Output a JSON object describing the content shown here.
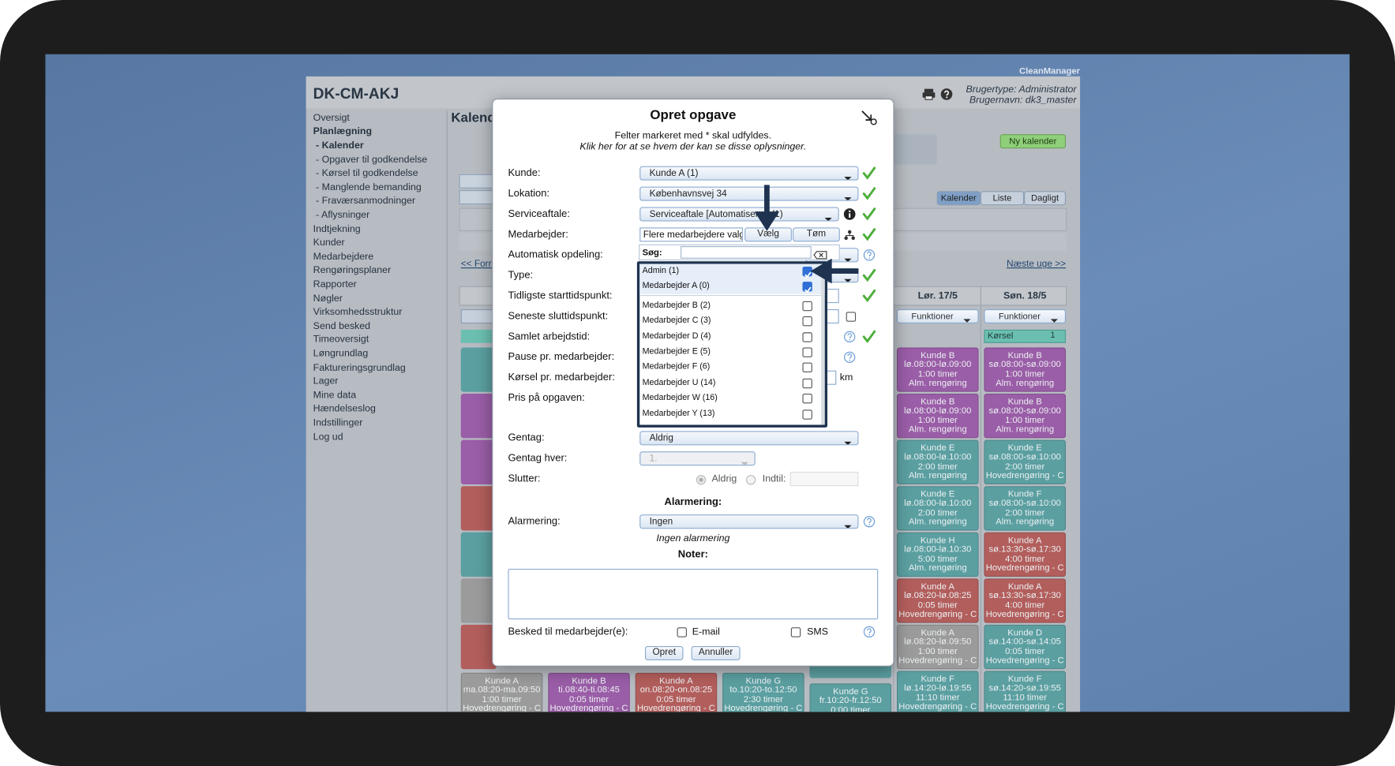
{
  "app_name": "CleanManager",
  "header": {
    "title": "DK-CM-AKJ",
    "user_type": "Brugertype: Administrator",
    "user_name": "Brugernavn: dk3_master"
  },
  "sidebar": [
    {
      "label": "Oversigt"
    },
    {
      "label": "Planlægning",
      "bold": true
    },
    {
      "label": "- Kalender",
      "bold": true
    },
    {
      "label": "- Opgaver til godkendelse"
    },
    {
      "label": "- Kørsel til godkendelse"
    },
    {
      "label": "- Manglende bemanding"
    },
    {
      "label": "- Fraværsanmodninger"
    },
    {
      "label": "- Aflysninger"
    },
    {
      "label": "Indtjekning"
    },
    {
      "label": "Kunder"
    },
    {
      "label": "Medarbejdere"
    },
    {
      "label": "Rengøringsplaner"
    },
    {
      "label": "Rapporter"
    },
    {
      "label": "Nøgler"
    },
    {
      "label": "Virksomhedsstruktur"
    },
    {
      "label": "Send besked"
    },
    {
      "label": "Timeoversigt"
    },
    {
      "label": "Løngrundlag"
    },
    {
      "label": "Faktureringsgrundlag"
    },
    {
      "label": "Lager"
    },
    {
      "label": "Mine data"
    },
    {
      "label": "Hændelseslog"
    },
    {
      "label": "Indstillinger"
    },
    {
      "label": "Log ud"
    }
  ],
  "calendar": {
    "heading": "Kalender",
    "new_calendar": "Ny kalender",
    "views": [
      "Kalender",
      "Liste",
      "Dagligt"
    ],
    "active_view": 0,
    "previous_week": "<< Forrige uge",
    "next_week": "Næste uge >>",
    "days": [
      {
        "header": "Lør. 17/5",
        "functions": "Funktioner",
        "cards": [
          {
            "color": "#9a5da7",
            "lines": [
              "Kunde B",
              "lø.08:00-lø.09:00",
              "1:00 timer",
              "Alm. rengøring"
            ]
          },
          {
            "color": "#9a5da7",
            "lines": [
              "Kunde B",
              "lø.08:00-lø.09:00",
              "1:00 timer",
              "Alm. rengøring"
            ]
          },
          {
            "color": "#5b9fa1",
            "lines": [
              "Kunde E",
              "lø.08:00-lø.10:00",
              "2:00 timer",
              "Alm. rengøring"
            ]
          },
          {
            "color": "#5b9fa1",
            "lines": [
              "Kunde E",
              "lø.08:00-lø.10:00",
              "2:00 timer",
              "Alm. rengøring"
            ]
          },
          {
            "color": "#5b9fa1",
            "lines": [
              "Kunde H",
              "lø.08:00-lø.10:30",
              "5:00 timer",
              "Alm. rengøring"
            ]
          },
          {
            "color": "#b25e5c",
            "lines": [
              "Kunde A",
              "lø.08:20-lø.08:25",
              "0:05 timer",
              "Hovedrengøring - C"
            ]
          },
          {
            "color": "#9b9b9b",
            "lines": [
              "Kunde A",
              "lø.08:20-lø.09:50",
              "1:00 timer",
              "Hovedrengøring - C"
            ]
          },
          {
            "color": "#5b9fa1",
            "lines": [
              "Kunde F",
              "lø.14:20-lø.19:55",
              "11:10 timer",
              "Hovedrengøring - C"
            ]
          }
        ]
      },
      {
        "header": "Søn. 18/5",
        "functions": "Funktioner",
        "transport": "Kørsel",
        "transport_count": "1",
        "cards": [
          {
            "color": "#9a5da7",
            "lines": [
              "Kunde B",
              "sø.08:00-sø.09:00",
              "1:00 timer",
              "Alm. rengøring"
            ]
          },
          {
            "color": "#9a5da7",
            "lines": [
              "Kunde B",
              "sø.08:00-sø.09:00",
              "1:00 timer",
              "Alm. rengøring"
            ]
          },
          {
            "color": "#5b9fa1",
            "lines": [
              "Kunde E",
              "sø.08:00-sø.10:00",
              "2:00 timer",
              "Hovedrengøring - C"
            ]
          },
          {
            "color": "#5b9fa1",
            "lines": [
              "Kunde F",
              "sø.08:00-sø.10:00",
              "2:00 timer",
              "Alm. rengøring"
            ]
          },
          {
            "color": "#b25e5c",
            "lines": [
              "Kunde A",
              "sø.13:30-sø.17:30",
              "4:00 timer",
              "Hovedrengøring - C"
            ]
          },
          {
            "color": "#b25e5c",
            "lines": [
              "Kunde A",
              "sø.13:30-sø.17:30",
              "4:00 timer",
              "Hovedrengøring - C"
            ]
          },
          {
            "color": "#5b9fa1",
            "lines": [
              "Kunde D",
              "sø.14:00-sø.14:05",
              "0:05 timer",
              "Hovedrengøring - C"
            ]
          },
          {
            "color": "#5b9fa1",
            "lines": [
              "Kunde F",
              "sø.14:20-sø.19:55",
              "11:10 timer",
              "Hovedrengøring - C"
            ]
          }
        ]
      }
    ],
    "bottom_row": [
      {
        "color": "#9b9b9b",
        "lines": [
          "Kunde A",
          "ma.08:20-ma.09:50",
          "1:00 timer",
          "Hovedrengøring - C"
        ]
      },
      {
        "color": "#9a5da7",
        "lines": [
          "Kunde B",
          "ti.08:40-ti.08:45",
          "0:05 timer",
          "Hovedrengøring - C"
        ]
      },
      {
        "color": "#b25e5c",
        "lines": [
          "Kunde A",
          "on.08:20-on.08:25",
          "0:05 timer",
          "Hovedrengøring - C"
        ]
      },
      {
        "color": "#5b9fa1",
        "lines": [
          "Kunde G",
          "to.10:20-to.12:50",
          "2:30 timer",
          "Hovedrengøring - C"
        ]
      },
      {
        "color": "#5b9fa1",
        "lines": [
          "Kunde G",
          "fr.10:20-fr.12:50",
          "0:00 timer"
        ]
      }
    ]
  },
  "modal": {
    "title": "Opret opgave",
    "required_note": "Felter markeret med * skal udfyldes.",
    "visibility_note": "Klik her for at se hvem der kan se disse oplysninger.",
    "customer": {
      "label": "Kunde:",
      "value": "Kunde A (1)"
    },
    "location": {
      "label": "Lokation:",
      "value": "Københavnsvej 34"
    },
    "agreement": {
      "label": "Serviceaftale:",
      "value": "Serviceaftale [Automatiseret] (1)"
    },
    "employee": {
      "label": "Medarbejder:",
      "value": "Flere medarbejdere valgt",
      "choose": "Vælg",
      "clear": "Tøm"
    },
    "auto_split": {
      "label": "Automatisk opdeling:"
    },
    "type": {
      "label": "Type:"
    },
    "earliest_start": {
      "label": "Tidligste starttidspunkt:"
    },
    "latest_end": {
      "label": "Seneste sluttidspunkt:"
    },
    "total_time": {
      "label": "Samlet arbejdstid:"
    },
    "break": {
      "label": "Pause pr. medarbejder:"
    },
    "driving": {
      "label": "Kørsel pr. medarbejder:",
      "unit": "km"
    },
    "price": {
      "label": "Pris på opgaven:"
    },
    "repeat": {
      "label": "Gentag:",
      "value": "Aldrig"
    },
    "repeat_every": {
      "label": "Gentag hver:",
      "value": "1."
    },
    "ends": {
      "label": "Slutter:",
      "never": "Aldrig",
      "until": "Indtil:"
    },
    "alarm_heading": "Alarmering:",
    "alarm": {
      "label": "Alarmering:",
      "value": "Ingen",
      "note": "Ingen alarmering"
    },
    "notes_heading": "Noter:",
    "message": {
      "label": "Besked til medarbejder(e):",
      "email": "E-mail",
      "sms": "SMS"
    },
    "submit": "Opret",
    "cancel": "Annuller",
    "picker": {
      "search_label": "Søg:",
      "options": [
        {
          "name": "Admin (1)",
          "checked": true
        },
        {
          "name": "Medarbejder A (0)",
          "checked": true
        },
        {
          "name": "Medarbejder B (2)",
          "checked": false
        },
        {
          "name": "Medarbejder C (3)",
          "checked": false
        },
        {
          "name": "Medarbejder D (4)",
          "checked": false
        },
        {
          "name": "Medarbejder E (5)",
          "checked": false
        },
        {
          "name": "Medarbejder F (6)",
          "checked": false
        },
        {
          "name": "Medarbejder U (14)",
          "checked": false
        },
        {
          "name": "Medarbejder W (16)",
          "checked": false
        },
        {
          "name": "Medarbejder Y (13)",
          "checked": false
        }
      ]
    }
  }
}
